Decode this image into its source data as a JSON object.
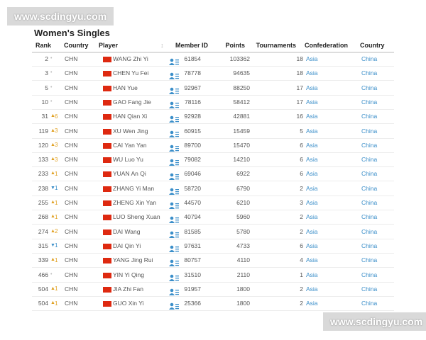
{
  "watermark_top": "www.scdingyu.com",
  "watermark_bottom": "www.scdingyu.com",
  "title": "Women's Singles",
  "columns": [
    "Rank",
    "Country",
    "Player",
    "Member ID",
    "Points",
    "Tournaments",
    "Confederation",
    "Country"
  ],
  "rows": [
    {
      "rank": "2",
      "trend": "same",
      "change": null,
      "country": "CHN",
      "player": "WANG Zhi Yi",
      "member_id": "61854",
      "points": "103362",
      "tournaments": "18",
      "confederation": "Asia",
      "nation": "China"
    },
    {
      "rank": "3",
      "trend": "same",
      "change": null,
      "country": "CHN",
      "player": "CHEN Yu Fei",
      "member_id": "78778",
      "points": "94635",
      "tournaments": "18",
      "confederation": "Asia",
      "nation": "China"
    },
    {
      "rank": "5",
      "trend": "same",
      "change": null,
      "country": "CHN",
      "player": "HAN Yue",
      "member_id": "92967",
      "points": "88250",
      "tournaments": "17",
      "confederation": "Asia",
      "nation": "China"
    },
    {
      "rank": "10",
      "trend": "same",
      "change": null,
      "country": "CHN",
      "player": "GAO Fang Jie",
      "member_id": "78116",
      "points": "58412",
      "tournaments": "17",
      "confederation": "Asia",
      "nation": "China"
    },
    {
      "rank": "31",
      "trend": "up",
      "change": "6",
      "country": "CHN",
      "player": "HAN Qian Xi",
      "member_id": "92928",
      "points": "42881",
      "tournaments": "16",
      "confederation": "Asia",
      "nation": "China"
    },
    {
      "rank": "119",
      "trend": "up",
      "change": "3",
      "country": "CHN",
      "player": "XU Wen Jing",
      "member_id": "60915",
      "points": "15459",
      "tournaments": "5",
      "confederation": "Asia",
      "nation": "China"
    },
    {
      "rank": "120",
      "trend": "up",
      "change": "3",
      "country": "CHN",
      "player": "CAI Yan Yan",
      "member_id": "89700",
      "points": "15470",
      "tournaments": "6",
      "confederation": "Asia",
      "nation": "China"
    },
    {
      "rank": "133",
      "trend": "up",
      "change": "3",
      "country": "CHN",
      "player": "WU Luo Yu",
      "member_id": "79082",
      "points": "14210",
      "tournaments": "6",
      "confederation": "Asia",
      "nation": "China"
    },
    {
      "rank": "233",
      "trend": "up",
      "change": "1",
      "country": "CHN",
      "player": "YUAN An Qi",
      "member_id": "69046",
      "points": "6922",
      "tournaments": "6",
      "confederation": "Asia",
      "nation": "China"
    },
    {
      "rank": "238",
      "trend": "down",
      "change": "1",
      "country": "CHN",
      "player": "ZHANG Yi Man",
      "member_id": "58720",
      "points": "6790",
      "tournaments": "2",
      "confederation": "Asia",
      "nation": "China"
    },
    {
      "rank": "255",
      "trend": "up",
      "change": "1",
      "country": "CHN",
      "player": "ZHENG Xin Yan",
      "member_id": "44570",
      "points": "6210",
      "tournaments": "3",
      "confederation": "Asia",
      "nation": "China"
    },
    {
      "rank": "268",
      "trend": "up",
      "change": "1",
      "country": "CHN",
      "player": "LUO Sheng Xuan",
      "member_id": "40794",
      "points": "5960",
      "tournaments": "2",
      "confederation": "Asia",
      "nation": "China"
    },
    {
      "rank": "274",
      "trend": "up",
      "change": "2",
      "country": "CHN",
      "player": "DAI Wang",
      "member_id": "81585",
      "points": "5780",
      "tournaments": "2",
      "confederation": "Asia",
      "nation": "China"
    },
    {
      "rank": "315",
      "trend": "down",
      "change": "1",
      "country": "CHN",
      "player": "DAI Qin Yi",
      "member_id": "97631",
      "points": "4733",
      "tournaments": "6",
      "confederation": "Asia",
      "nation": "China"
    },
    {
      "rank": "339",
      "trend": "up",
      "change": "1",
      "country": "CHN",
      "player": "YANG Jing Rui",
      "member_id": "80757",
      "points": "4110",
      "tournaments": "4",
      "confederation": "Asia",
      "nation": "China"
    },
    {
      "rank": "466",
      "trend": "same",
      "change": null,
      "country": "CHN",
      "player": "YIN Yi Qing",
      "member_id": "31510",
      "points": "2110",
      "tournaments": "1",
      "confederation": "Asia",
      "nation": "China"
    },
    {
      "rank": "504",
      "trend": "up",
      "change": "1",
      "country": "CHN",
      "player": "JIA Zhi Fan",
      "member_id": "91957",
      "points": "1800",
      "tournaments": "2",
      "confederation": "Asia",
      "nation": "China"
    },
    {
      "rank": "504",
      "trend": "up",
      "change": "1",
      "country": "CHN",
      "player": "GUO Xin Yi",
      "member_id": "25366",
      "points": "1800",
      "tournaments": "2",
      "confederation": "Asia",
      "nation": "China"
    }
  ]
}
